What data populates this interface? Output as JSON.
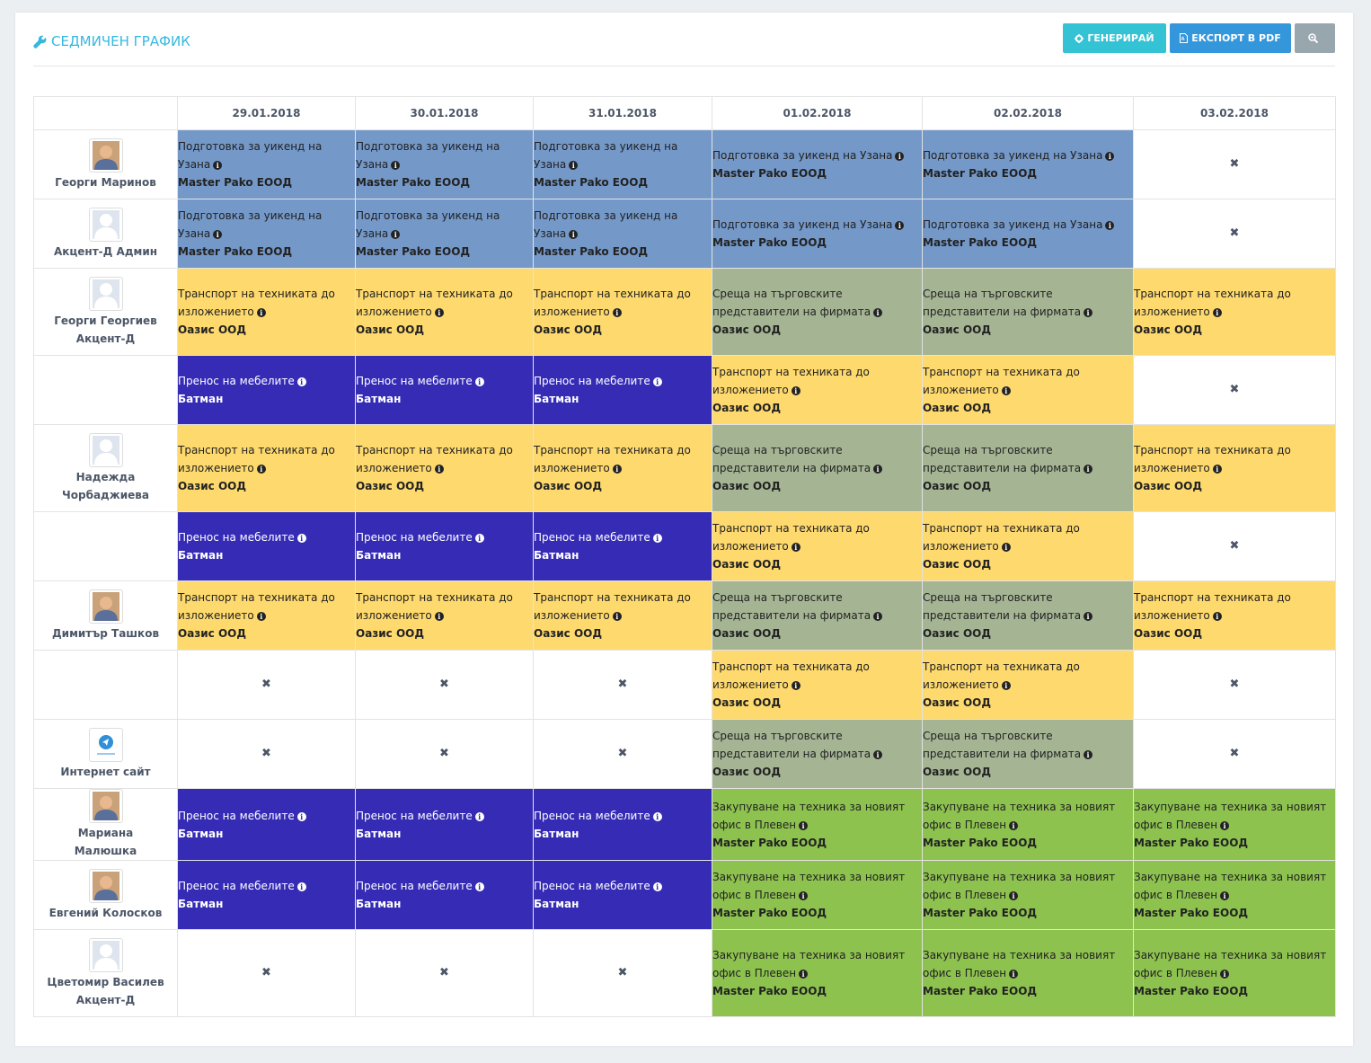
{
  "page": {
    "title": "Седмичен график",
    "buttons": {
      "generate": "Генерирай",
      "export_pdf": "Експорт в PDF"
    }
  },
  "dates": [
    "29.01.2018",
    "30.01.2018",
    "31.01.2018",
    "01.02.2018",
    "02.02.2018",
    "03.02.2018"
  ],
  "colors": {
    "blue": "#7498c8",
    "yellow": "#fed96d",
    "gray": "#a5b594",
    "navy": "#352bb5",
    "green": "#8dc24f",
    "accent": "#35b8e0"
  },
  "tasks": {
    "weekend": {
      "name": "Подготовка за уикенд на Узана",
      "client": "Master Pako ЕООД",
      "color": "blue"
    },
    "transport": {
      "name": "Транспорт на техниката до изложението",
      "client": "Оазис ООД",
      "color": "yellow"
    },
    "meeting": {
      "name": "Среща на търговските представители на фирмата",
      "client": "Оазис ООД",
      "color": "gray"
    },
    "furniture": {
      "name": "Пренос на мебелите",
      "client": "Батман",
      "color": "navy"
    },
    "purchase": {
      "name": "Закупуване на техника за новият офис в Плевен",
      "client": "Master Pako ЕООД",
      "color": "green"
    }
  },
  "empty_mark": "✖",
  "rows": [
    {
      "person": "Георги Маринов",
      "avatar": "photo-avatar",
      "cells": [
        "weekend",
        "weekend",
        "weekend",
        "weekend",
        "weekend",
        null
      ]
    },
    {
      "person": "Акцент-Д Админ",
      "avatar": "default-avatar",
      "cells": [
        "weekend",
        "weekend",
        "weekend",
        "weekend",
        "weekend",
        null
      ]
    },
    {
      "person": "Георги Георгиев Акцент-Д",
      "avatar": "default-avatar",
      "cells": [
        "transport",
        "transport",
        "transport",
        "meeting",
        "meeting",
        "transport"
      ]
    },
    {
      "person": "",
      "avatar": "",
      "cells": [
        "furniture",
        "furniture",
        "furniture",
        "transport",
        "transport",
        null
      ]
    },
    {
      "person": "Надежда Чорбаджиева",
      "avatar": "default-avatar",
      "cells": [
        "transport",
        "transport",
        "transport",
        "meeting",
        "meeting",
        "transport"
      ]
    },
    {
      "person": "",
      "avatar": "",
      "cells": [
        "furniture",
        "furniture",
        "furniture",
        "transport",
        "transport",
        null
      ]
    },
    {
      "person": "Димитър Ташков",
      "avatar": "photo-avatar",
      "cells": [
        "transport",
        "transport",
        "transport",
        "meeting",
        "meeting",
        "transport"
      ]
    },
    {
      "person": "",
      "avatar": "",
      "cells": [
        null,
        null,
        null,
        "transport",
        "transport",
        null
      ]
    },
    {
      "person": "Интернет сайт",
      "avatar": "logo-avatar",
      "cells": [
        null,
        null,
        null,
        "meeting",
        "meeting",
        null
      ]
    },
    {
      "person": "Мариана Малюшка",
      "avatar": "photo-avatar",
      "cells": [
        "furniture",
        "furniture",
        "furniture",
        "purchase",
        "purchase",
        "purchase"
      ]
    },
    {
      "person": "Евгений Колосков",
      "avatar": "photo-avatar",
      "cells": [
        "furniture",
        "furniture",
        "furniture",
        "purchase",
        "purchase",
        "purchase"
      ]
    },
    {
      "person": "Цветомир Василев Акцент-Д",
      "avatar": "default-avatar",
      "cells": [
        null,
        null,
        null,
        "purchase",
        "purchase",
        "purchase"
      ]
    }
  ]
}
